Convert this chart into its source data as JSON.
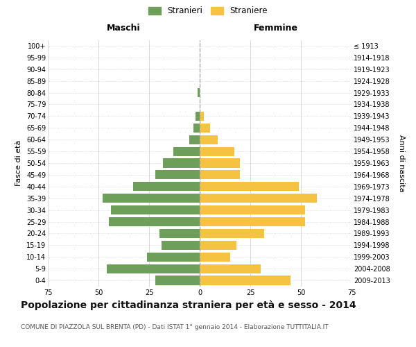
{
  "age_groups": [
    "0-4",
    "5-9",
    "10-14",
    "15-19",
    "20-24",
    "25-29",
    "30-34",
    "35-39",
    "40-44",
    "45-49",
    "50-54",
    "55-59",
    "60-64",
    "65-69",
    "70-74",
    "75-79",
    "80-84",
    "85-89",
    "90-94",
    "95-99",
    "100+"
  ],
  "birth_years": [
    "2009-2013",
    "2004-2008",
    "1999-2003",
    "1994-1998",
    "1989-1993",
    "1984-1988",
    "1979-1983",
    "1974-1978",
    "1969-1973",
    "1964-1968",
    "1959-1963",
    "1954-1958",
    "1949-1953",
    "1944-1948",
    "1939-1943",
    "1934-1938",
    "1929-1933",
    "1924-1928",
    "1919-1923",
    "1914-1918",
    "≤ 1913"
  ],
  "maschi": [
    22,
    46,
    26,
    19,
    20,
    45,
    44,
    48,
    33,
    22,
    18,
    13,
    5,
    3,
    2,
    0,
    1,
    0,
    0,
    0,
    0
  ],
  "femmine": [
    45,
    30,
    15,
    18,
    32,
    52,
    52,
    58,
    49,
    20,
    20,
    17,
    9,
    5,
    2,
    0,
    0,
    0,
    0,
    0,
    0
  ],
  "maschi_color": "#6d9e5a",
  "femmine_color": "#f5c242",
  "bg_color": "#ffffff",
  "grid_color": "#cccccc",
  "dashed_line_color": "#aaaaaa",
  "xlim": 75,
  "title": "Popolazione per cittadinanza straniera per età e sesso - 2014",
  "subtitle": "COMUNE DI PIAZZOLA SUL BRENTA (PD) - Dati ISTAT 1° gennaio 2014 - Elaborazione TUTTITALIA.IT",
  "xlabel_left": "Maschi",
  "xlabel_right": "Femmine",
  "ylabel_left": "Fasce di età",
  "ylabel_right": "Anni di nascita",
  "legend_stranieri": "Stranieri",
  "legend_straniere": "Straniere",
  "title_fontsize": 10,
  "subtitle_fontsize": 6.5,
  "header_fontsize": 9,
  "label_fontsize": 8,
  "tick_fontsize": 7
}
